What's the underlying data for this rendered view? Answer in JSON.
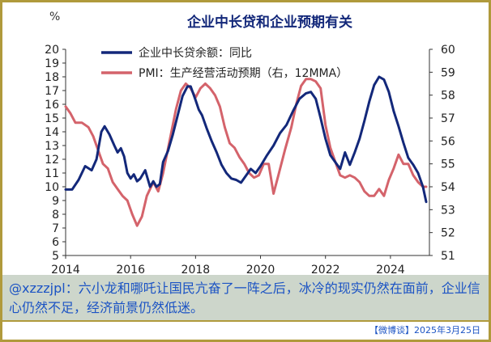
{
  "chart_data": {
    "type": "line",
    "title": "企业中长贷和企业预期有关",
    "left_unit": "%",
    "x_ticks": [
      "2014",
      "2016",
      "2018",
      "2020",
      "2022",
      "2024"
    ],
    "x_range": [
      2014.0,
      2025.2
    ],
    "y_left": {
      "range": [
        5,
        20
      ],
      "ticks": [
        "5",
        "6",
        "7",
        "8",
        "9",
        "10",
        "11",
        "12",
        "13",
        "14",
        "15",
        "16",
        "17",
        "18",
        "19",
        "20"
      ]
    },
    "y_right": {
      "range": [
        51,
        60
      ],
      "ticks": [
        "51",
        "52",
        "53",
        "54",
        "55",
        "56",
        "57",
        "58",
        "59",
        "60"
      ]
    },
    "series": [
      {
        "name": "企业中长贷余额：同比",
        "axis": "left",
        "color": "#13287a",
        "x": [
          2014.0,
          2014.2,
          2014.4,
          2014.6,
          2014.8,
          2014.95,
          2015.1,
          2015.2,
          2015.35,
          2015.5,
          2015.6,
          2015.7,
          2015.8,
          2015.9,
          2016.0,
          2016.1,
          2016.2,
          2016.3,
          2016.45,
          2016.6,
          2016.7,
          2016.8,
          2016.9,
          2017.0,
          2017.15,
          2017.3,
          2017.45,
          2017.6,
          2017.75,
          2017.85,
          2018.0,
          2018.1,
          2018.2,
          2018.35,
          2018.5,
          2018.65,
          2018.8,
          2018.95,
          2019.1,
          2019.25,
          2019.4,
          2019.55,
          2019.7,
          2019.85,
          2020.0,
          2020.2,
          2020.4,
          2020.6,
          2020.8,
          2021.0,
          2021.2,
          2021.4,
          2021.55,
          2021.7,
          2021.85,
          2022.0,
          2022.15,
          2022.3,
          2022.45,
          2022.6,
          2022.75,
          2022.9,
          2023.05,
          2023.2,
          2023.35,
          2023.5,
          2023.65,
          2023.8,
          2023.95,
          2024.1,
          2024.25,
          2024.4,
          2024.55,
          2024.7,
          2024.85,
          2025.0,
          2025.1
        ],
        "y": [
          9.8,
          9.8,
          10.5,
          11.5,
          11.2,
          12.0,
          14.0,
          14.4,
          13.8,
          13.0,
          12.5,
          12.8,
          12.2,
          11.0,
          10.6,
          10.9,
          10.4,
          10.6,
          11.2,
          10.0,
          10.4,
          10.0,
          10.2,
          11.8,
          12.6,
          13.8,
          15.2,
          16.6,
          17.3,
          17.3,
          16.3,
          15.6,
          15.2,
          14.2,
          13.3,
          12.5,
          11.6,
          11.0,
          10.6,
          10.5,
          10.3,
          10.8,
          11.3,
          11.0,
          11.5,
          12.3,
          13.0,
          13.9,
          14.5,
          15.5,
          16.4,
          16.8,
          16.9,
          16.4,
          15.0,
          13.5,
          12.3,
          11.8,
          11.3,
          12.5,
          11.6,
          12.5,
          13.5,
          14.8,
          16.2,
          17.4,
          18.0,
          17.8,
          16.9,
          15.5,
          14.4,
          13.2,
          12.1,
          11.6,
          11.0,
          10.0,
          8.9
        ]
      },
      {
        "name": "PMI：生产经营活动预期（右，12MMA）",
        "axis": "right",
        "color": "#d4636b",
        "x": [
          2014.0,
          2014.15,
          2014.3,
          2014.5,
          2014.7,
          2014.85,
          2015.0,
          2015.15,
          2015.3,
          2015.45,
          2015.6,
          2015.75,
          2015.9,
          2016.05,
          2016.2,
          2016.35,
          2016.5,
          2016.7,
          2016.85,
          2017.0,
          2017.2,
          2017.4,
          2017.55,
          2017.7,
          2017.85,
          2018.0,
          2018.15,
          2018.3,
          2018.45,
          2018.6,
          2018.75,
          2018.9,
          2019.05,
          2019.2,
          2019.35,
          2019.5,
          2019.65,
          2019.8,
          2019.95,
          2020.1,
          2020.25,
          2020.4,
          2020.55,
          2020.75,
          2020.95,
          2021.1,
          2021.25,
          2021.4,
          2021.55,
          2021.7,
          2021.85,
          2022.0,
          2022.15,
          2022.3,
          2022.45,
          2022.6,
          2022.75,
          2022.9,
          2023.05,
          2023.2,
          2023.35,
          2023.5,
          2023.65,
          2023.8,
          2023.95,
          2024.1,
          2024.25,
          2024.4,
          2024.55,
          2024.7,
          2024.85,
          2025.0,
          2025.1
        ],
        "y": [
          57.5,
          57.2,
          56.8,
          56.8,
          56.6,
          56.2,
          55.6,
          55.0,
          54.8,
          54.2,
          53.9,
          53.6,
          53.4,
          52.8,
          52.3,
          52.7,
          53.6,
          54.2,
          53.8,
          54.6,
          56.0,
          57.4,
          58.2,
          58.5,
          58.3,
          57.9,
          58.3,
          58.5,
          58.3,
          58.0,
          57.5,
          56.6,
          55.9,
          55.7,
          55.3,
          55.0,
          54.6,
          54.4,
          54.5,
          55.0,
          55.0,
          53.7,
          54.5,
          55.6,
          56.6,
          57.6,
          58.4,
          58.7,
          58.7,
          58.6,
          58.3,
          56.7,
          55.7,
          55.1,
          54.5,
          54.4,
          54.5,
          54.4,
          54.2,
          53.8,
          53.6,
          53.6,
          53.9,
          53.6,
          54.3,
          54.8,
          55.4,
          55.0,
          55.0,
          54.5,
          54.2,
          54.0,
          54.0
        ]
      }
    ],
    "legend_position": "top-left",
    "grid": false
  },
  "caption": {
    "text": "@xzzzjpl：六小龙和哪吒让国民亢奋了一阵之后，冰冷的现实仍然在面前，企业信心仍然不足，经济前景仍然低迷。"
  },
  "footer": {
    "text": "【微博谈】2025年3月25日"
  }
}
